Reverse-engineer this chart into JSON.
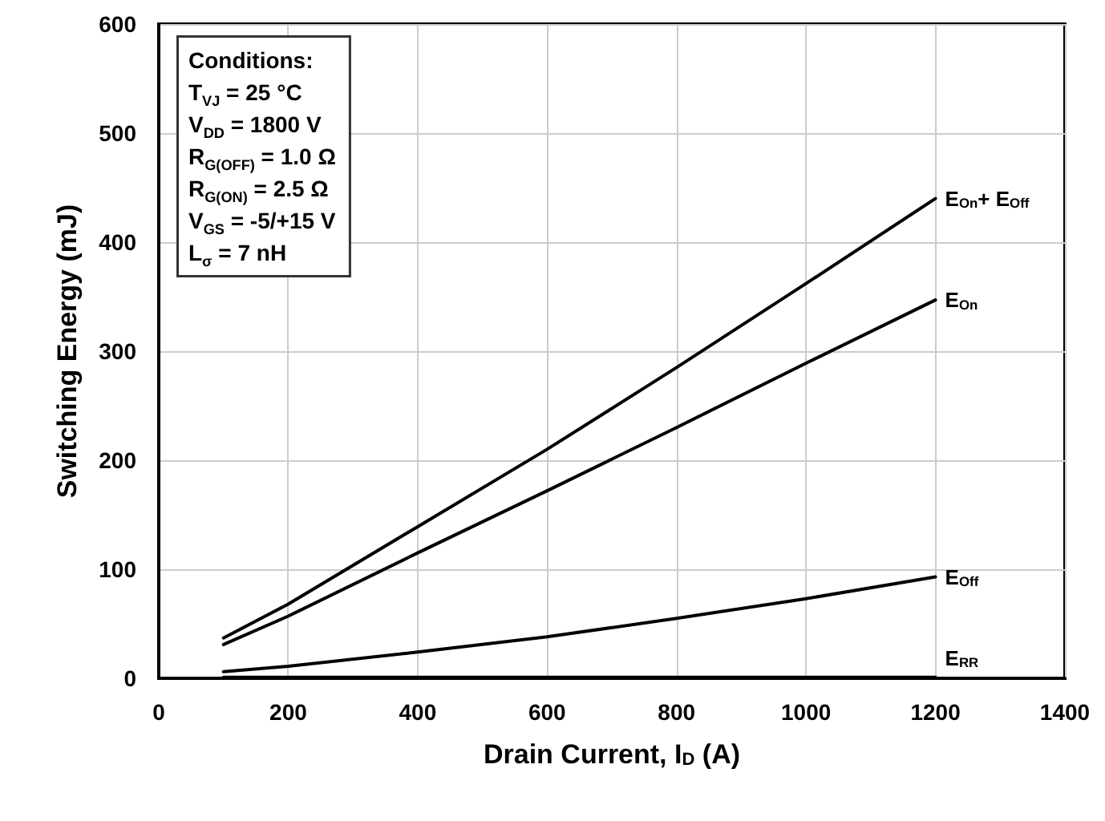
{
  "chart_data": {
    "type": "line",
    "xlabel": "Drain Current, I$_{D}$ (A)",
    "ylabel": "Switching Energy (mJ)",
    "x": [
      100,
      200,
      400,
      600,
      800,
      1000,
      1200
    ],
    "series": [
      {
        "name": "E$_{On}$+ E$_{Off}$",
        "color": "#000000",
        "values": [
          37,
          68,
          139,
          210,
          285,
          362,
          440
        ]
      },
      {
        "name": "E$_{On}$",
        "color": "#000000",
        "values": [
          31,
          57,
          115,
          172,
          230,
          289,
          347
        ]
      },
      {
        "name": "E$_{Off}$",
        "color": "#000000",
        "values": [
          6,
          11,
          24,
          38,
          55,
          73,
          93
        ]
      },
      {
        "name": "E$_{RR}$",
        "color": "#000000",
        "values": [
          1,
          1,
          1,
          1,
          1,
          1,
          1
        ]
      }
    ],
    "xlim": [
      0,
      1400
    ],
    "xticks": [
      0,
      200,
      400,
      600,
      800,
      1000,
      1200,
      1400
    ],
    "ylim": [
      0,
      600
    ],
    "yticks": [
      0,
      100,
      200,
      300,
      400,
      500,
      600
    ],
    "grid": true,
    "legend": false,
    "marker": "none",
    "line_style": "solid",
    "annotations": [
      "Conditions:",
      "T$_{VJ}$ = 25 °C",
      "V$_{DD}$ = 1800 V",
      "R$_{G(OFF)}$ = 1.0 Ω",
      "R$_{G(ON)}$ = 2.5 Ω",
      "V$_{GS}$ = -5/+15 V",
      "L$_{σ}$ = 7 nH"
    ]
  }
}
